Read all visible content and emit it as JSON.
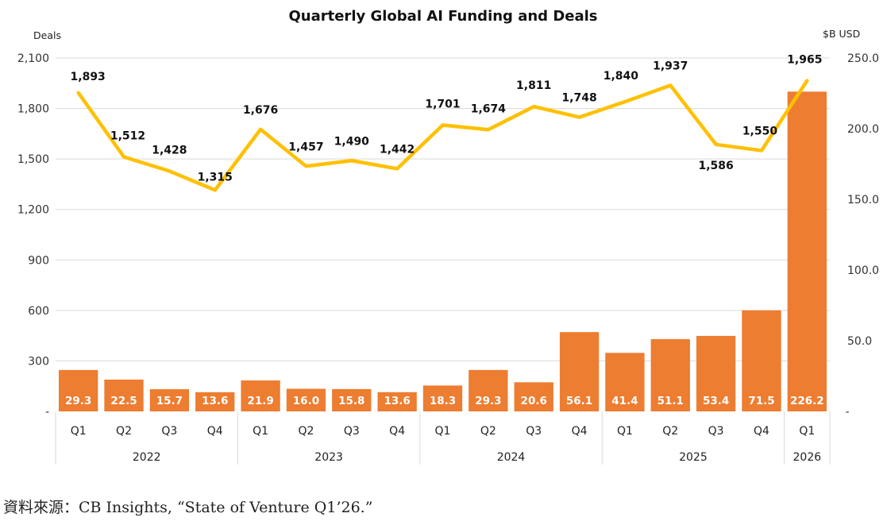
{
  "chart_data": {
    "type": "bar+line",
    "title": "Quarterly Global AI Funding and Deals",
    "ylabel_left": "Deals",
    "ylabel_right": "$B USD",
    "ylim_left": [
      0,
      2100
    ],
    "ylim_right": [
      0,
      250
    ],
    "left_ticks": [
      "-",
      "300",
      "600",
      "900",
      "1,200",
      "1,500",
      "1,800",
      "2,100"
    ],
    "left_tick_values": [
      0,
      300,
      600,
      900,
      1200,
      1500,
      1800,
      2100
    ],
    "right_ticks": [
      "-",
      "50.0",
      "100.0",
      "150.0",
      "200.0",
      "250.0"
    ],
    "right_tick_values": [
      0,
      50,
      100,
      150,
      200,
      250
    ],
    "categories": [
      "Q1",
      "Q2",
      "Q3",
      "Q4",
      "Q1",
      "Q2",
      "Q3",
      "Q4",
      "Q1",
      "Q2",
      "Q3",
      "Q4",
      "Q1",
      "Q2",
      "Q3",
      "Q4",
      "Q1"
    ],
    "years": [
      {
        "label": "2022",
        "count": 4
      },
      {
        "label": "2023",
        "count": 4
      },
      {
        "label": "2024",
        "count": 4
      },
      {
        "label": "2025",
        "count": 4
      },
      {
        "label": "2026",
        "count": 1
      }
    ],
    "series": [
      {
        "name": "Funding ($B)",
        "type": "bar",
        "axis": "right",
        "color": "#ED7D31",
        "values": [
          29.3,
          22.5,
          15.7,
          13.6,
          21.9,
          16.0,
          15.8,
          13.6,
          18.3,
          29.3,
          20.6,
          56.1,
          41.4,
          51.1,
          53.4,
          71.5,
          226.2
        ],
        "labels": [
          "29.3",
          "22.5",
          "15.7",
          "13.6",
          "21.9",
          "16.0",
          "15.8",
          "13.6",
          "18.3",
          "29.3",
          "20.6",
          "56.1",
          "41.4",
          "51.1",
          "53.4",
          "71.5",
          "226.2"
        ]
      },
      {
        "name": "Deals",
        "type": "line",
        "axis": "left",
        "color": "#FFC000",
        "values": [
          1893,
          1512,
          1428,
          1315,
          1676,
          1457,
          1490,
          1442,
          1701,
          1674,
          1811,
          1748,
          1840,
          1937,
          1586,
          1550,
          1965
        ],
        "labels": [
          "1,893",
          "1,512",
          "1,428",
          "1,315",
          "1,676",
          "1,457",
          "1,490",
          "1,442",
          "1,701",
          "1,674",
          "1,811",
          "1,748",
          "1,840",
          "1,937",
          "1,586",
          "1,550",
          "1,965"
        ]
      }
    ],
    "grid": true
  },
  "source": "資料來源：CB Insights, “State of Venture Q1’26.”"
}
